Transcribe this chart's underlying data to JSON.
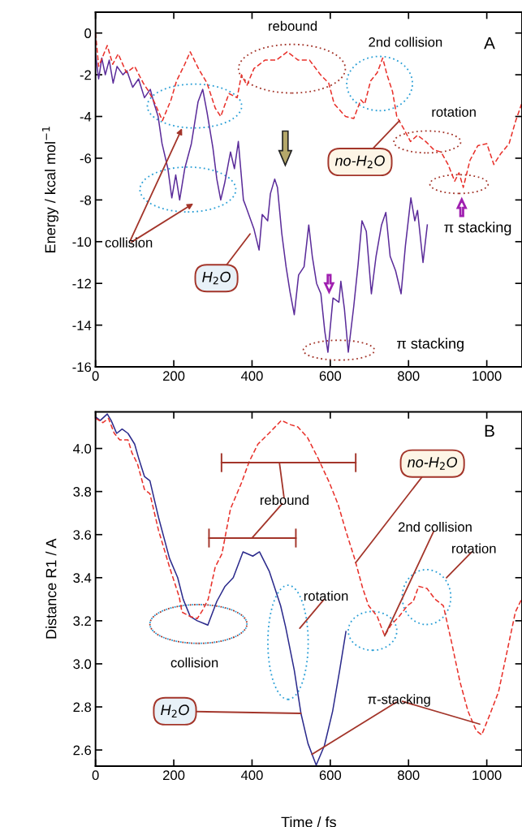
{
  "chart_data": [
    {
      "type": "line",
      "ylabel": "Energy / kcal mol$^{−1}$",
      "xlim": [
        0,
        1090
      ],
      "xticks": [
        0,
        200,
        400,
        600,
        800,
        1000
      ],
      "ylim": [
        -16,
        1
      ],
      "yticks": [
        0,
        -2,
        -4,
        -6,
        -8,
        -10,
        -12,
        -14,
        -16
      ],
      "series": [
        {
          "color": "#5b2c9a",
          "line_style": "solid",
          "x": [
            0,
            8,
            16,
            25,
            35,
            45,
            55,
            70,
            80,
            95,
            110,
            125,
            140,
            150,
            160,
            170,
            185,
            195,
            205,
            215,
            228,
            245,
            262,
            274,
            285,
            300,
            310,
            320,
            330,
            345,
            355,
            365,
            378,
            384,
            405,
            418,
            426,
            440,
            447,
            458,
            465,
            476,
            487,
            497,
            508,
            519,
            533,
            545,
            554,
            565,
            576,
            586,
            594,
            607,
            622,
            627,
            636,
            646,
            660,
            671,
            681,
            692,
            705,
            717,
            731,
            742,
            753,
            767,
            781,
            792,
            806,
            816,
            823,
            837,
            848
          ],
          "values": [
            -1.0,
            -2.2,
            -1.2,
            -2.0,
            -1.3,
            -2.4,
            -1.6,
            -2.0,
            -1.8,
            -2.6,
            -2.2,
            -3.1,
            -2.7,
            -3.4,
            -4.0,
            -5.3,
            -6.5,
            -7.9,
            -6.8,
            -8.0,
            -6.5,
            -5.3,
            -3.3,
            -2.7,
            -3.8,
            -5.5,
            -7.0,
            -8.0,
            -7.2,
            -5.7,
            -6.5,
            -5.2,
            -8.0,
            -8.3,
            -9.4,
            -10.4,
            -8.7,
            -9.0,
            -7.7,
            -7.0,
            -7.4,
            -9.6,
            -11.2,
            -12.4,
            -13.5,
            -11.6,
            -11.2,
            -9.2,
            -10.7,
            -12.0,
            -12.5,
            -14.3,
            -15.3,
            -12.7,
            -12.9,
            -11.9,
            -13.2,
            -15.3,
            -13.1,
            -11.1,
            -9.0,
            -9.5,
            -12.5,
            -10.7,
            -9.2,
            -8.6,
            -10.7,
            -11.4,
            -12.5,
            -10.2,
            -7.9,
            -9.0,
            -8.5,
            -11.0,
            -9.2
          ]
        },
        {
          "color": "#e8302a",
          "line_style": "dashed",
          "x": [
            0,
            8,
            30,
            44,
            58,
            79,
            100,
            122,
            136,
            150,
            171,
            193,
            207,
            228,
            242,
            263,
            285,
            306,
            320,
            341,
            362,
            373,
            387,
            405,
            433,
            462,
            490,
            518,
            547,
            575,
            596,
            610,
            639,
            660,
            678,
            688,
            703,
            720,
            734,
            745,
            759,
            770,
            788,
            805,
            823,
            844,
            865,
            883,
            901,
            918,
            929,
            940,
            957,
            977,
            1000,
            1018,
            1035,
            1057,
            1074,
            1089
          ],
          "values": [
            0,
            -1.6,
            -0.6,
            -1.5,
            -1.0,
            -1.9,
            -1.6,
            -2.4,
            -2.8,
            -3.3,
            -4.2,
            -3.2,
            -2.3,
            -1.5,
            -0.9,
            -1.7,
            -2.4,
            -3.6,
            -4.0,
            -2.9,
            -3.1,
            -2.0,
            -2.5,
            -1.7,
            -1.3,
            -1.3,
            -0.9,
            -1.3,
            -1.3,
            -2.0,
            -2.4,
            -3.4,
            -4.0,
            -4.1,
            -3.2,
            -3.4,
            -2.3,
            -1.9,
            -1.2,
            -2.0,
            -2.8,
            -4.0,
            -4.6,
            -5.2,
            -4.9,
            -5.2,
            -5.6,
            -5.7,
            -6.3,
            -7.1,
            -6.7,
            -7.4,
            -6.1,
            -5.4,
            -5.3,
            -6.3,
            -5.8,
            -5.3,
            -4.2,
            -3.4
          ]
        }
      ],
      "annotations": [
        "A",
        "rebound",
        "2nd collision",
        "rotation",
        {
          "text": "no-H$_{2}$O",
          "x": 777,
          "y": -4.2
        },
        "collision",
        "H$_{2}$O",
        "π stacking",
        "π stacking"
      ]
    },
    {
      "type": "line",
      "xlabel": "Time / fs",
      "ylabel": "Distance R1 / A",
      "xlim": [
        0,
        1090
      ],
      "xticks": [
        0,
        200,
        400,
        600,
        800,
        1000
      ],
      "ylim": [
        2.525,
        4.17
      ],
      "yticks": [
        {
          "value": 2.6,
          "label": "2.6"
        },
        {
          "value": 2.8,
          "label": "2.8"
        },
        {
          "value": 3.0,
          "label": "3.0"
        },
        {
          "value": 3.2,
          "label": "3.2"
        },
        {
          "value": 3.4,
          "label": "3.4"
        },
        {
          "value": 3.6,
          "label": "3.6"
        },
        {
          "value": 3.8,
          "label": "3.8"
        },
        {
          "value": 4.0,
          "label": "4.0"
        }
      ],
      "series": [
        {
          "color": "#2b2a8c",
          "line_style": "solid",
          "x": [
            0,
            12,
            30,
            40,
            54,
            68,
            83,
            100,
            111,
            125,
            139,
            161,
            189,
            210,
            224,
            242,
            260,
            287,
            310,
            331,
            352,
            377,
            402,
            419,
            444,
            473,
            486,
            508,
            525,
            543,
            564,
            585,
            606,
            624,
            640
          ],
          "values": [
            4.147,
            4.13,
            4.16,
            4.13,
            4.07,
            4.09,
            4.07,
            4.02,
            3.95,
            3.87,
            3.85,
            3.68,
            3.49,
            3.4,
            3.3,
            3.22,
            3.2,
            3.18,
            3.29,
            3.36,
            3.4,
            3.52,
            3.5,
            3.52,
            3.43,
            3.27,
            3.17,
            2.97,
            2.77,
            2.63,
            2.53,
            2.62,
            2.78,
            2.97,
            3.15
          ]
        },
        {
          "color": "#e8302a",
          "line_style": "dashed",
          "x": [
            0,
            19,
            33,
            48,
            62,
            83,
            93,
            107,
            125,
            139,
            161,
            189,
            214,
            221,
            242,
            260,
            274,
            288,
            306,
            323,
            345,
            373,
            393,
            415,
            443,
            475,
            499,
            517,
            542,
            570,
            598,
            620,
            641,
            662,
            683,
            698,
            720,
            739,
            755,
            776,
            797,
            812,
            826,
            847,
            868,
            889,
            910,
            931,
            952,
            973,
            987,
            1009,
            1030,
            1051,
            1073,
            1089
          ],
          "values": [
            4.14,
            4.12,
            4.14,
            4.07,
            4.04,
            4.04,
            3.98,
            3.93,
            3.81,
            3.79,
            3.62,
            3.45,
            3.31,
            3.24,
            3.22,
            3.21,
            3.25,
            3.3,
            3.45,
            3.51,
            3.72,
            3.84,
            3.94,
            4.02,
            4.07,
            4.13,
            4.11,
            4.1,
            4.05,
            3.95,
            3.84,
            3.74,
            3.61,
            3.49,
            3.35,
            3.27,
            3.22,
            3.13,
            3.18,
            3.22,
            3.27,
            3.29,
            3.36,
            3.35,
            3.3,
            3.27,
            3.1,
            2.92,
            2.78,
            2.69,
            2.67,
            2.77,
            2.87,
            3.05,
            3.24,
            3.3
          ]
        }
      ],
      "annotations": [
        "B",
        {
          "text": "no-H$_{2}$O",
          "x": 665,
          "y": 3.47
        },
        "rebound",
        {
          "text": "2nd collision",
          "x": 739,
          "y": 3.13
        },
        "rotation",
        "rotation",
        "collision",
        {
          "text": "H$_{2}$O",
          "x": 525,
          "y": 2.77
        },
        {
          "text": "π-stacking",
          "x": 553,
          "y": 2.58
        }
      ]
    }
  ]
}
